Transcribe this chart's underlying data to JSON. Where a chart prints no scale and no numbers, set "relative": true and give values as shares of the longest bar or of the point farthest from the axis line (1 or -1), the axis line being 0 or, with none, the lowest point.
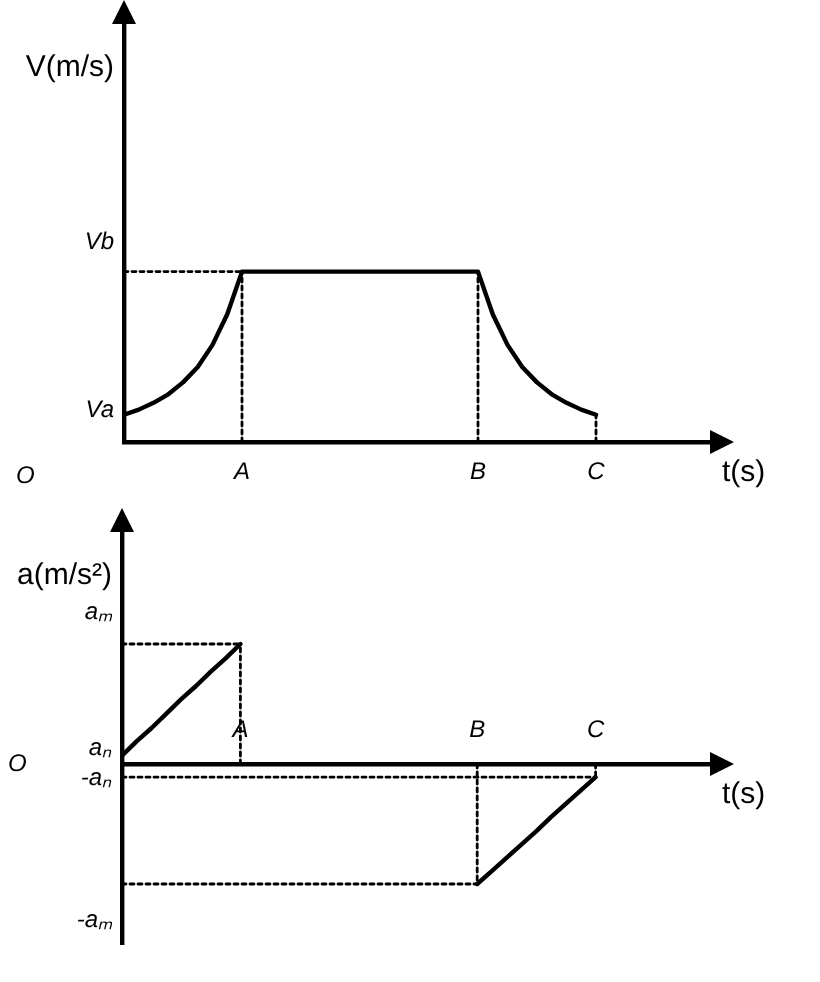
{
  "chart_data": [
    {
      "type": "line",
      "xlabel": "t(s)",
      "ylabel": "V(m/s)",
      "relative": true,
      "marker": "none",
      "grid": false,
      "categories": [
        null,
        null,
        null,
        null,
        null,
        null,
        null,
        null,
        "A",
        null,
        null,
        null,
        null,
        null,
        null,
        null,
        null,
        null,
        null,
        null,
        null,
        null,
        null,
        null,
        "B",
        null,
        null,
        null,
        null,
        null,
        null,
        null,
        "C",
        null,
        null,
        null,
        null,
        null,
        null,
        null,
        null
      ],
      "annotations": [
        "O",
        "Vb",
        "Va"
      ],
      "series": [
        {
          "color": "#000000",
          "line_style": "solid",
          "values": [
            0.16,
            0.19,
            0.23,
            0.28,
            0.35,
            0.44,
            0.57,
            0.75,
            1,
            1,
            1,
            1,
            1,
            1,
            1,
            1,
            1,
            1,
            1,
            1,
            1,
            1,
            1,
            1,
            1,
            0.75,
            0.57,
            0.44,
            0.35,
            0.28,
            0.23,
            0.19,
            0.16,
            null,
            null,
            null,
            null,
            null,
            null,
            null,
            null
          ]
        },
        {
          "color": "#000000",
          "line_style": "dotted",
          "values": [
            1,
            1,
            1,
            1,
            1,
            1,
            1,
            1,
            1,
            null,
            null,
            null,
            null,
            null,
            null,
            null,
            null,
            null,
            null,
            null,
            null,
            null,
            null,
            null,
            null,
            null,
            null,
            null,
            null,
            null,
            null,
            null,
            null,
            null,
            null,
            null,
            null,
            null,
            null,
            null,
            null
          ]
        },
        {
          "color": "#000000",
          "line_style": "dotted",
          "x": [
            "A",
            "A"
          ],
          "values": [
            0,
            1
          ]
        },
        {
          "color": "#000000",
          "line_style": "dotted",
          "x": [
            "B",
            "B"
          ],
          "values": [
            0,
            1
          ]
        },
        {
          "color": "#000000",
          "line_style": "dotted",
          "x": [
            "C",
            "C"
          ],
          "values": [
            0,
            0.16
          ]
        }
      ]
    },
    {
      "type": "line",
      "xlabel": "t(s)",
      "ylabel": "a(m/s²)",
      "relative": true,
      "marker": "none",
      "grid": false,
      "categories": [
        null,
        null,
        null,
        null,
        null,
        null,
        null,
        null,
        "A",
        null,
        null,
        null,
        null,
        null,
        null,
        null,
        null,
        null,
        null,
        null,
        null,
        null,
        null,
        null,
        "B",
        null,
        null,
        null,
        null,
        null,
        null,
        null,
        "C",
        null,
        null,
        null,
        null,
        null,
        null,
        null,
        null
      ],
      "annotations": [
        "O",
        "aₘ",
        "aₙ",
        "-aₙ",
        "-aₘ"
      ],
      "series": [
        {
          "color": "#000000",
          "line_style": "solid",
          "values": [
            0.07,
            0.19,
            0.3,
            0.42,
            0.54,
            0.65,
            0.77,
            0.88,
            1,
            null,
            null,
            null,
            null,
            null,
            null,
            null,
            null,
            null,
            null,
            null,
            null,
            null,
            null,
            null,
            null,
            null,
            null,
            null,
            null,
            null,
            null,
            null,
            null,
            null,
            null,
            null,
            null,
            null,
            null,
            null,
            null
          ]
        },
        {
          "color": "#000000",
          "line_style": "solid",
          "values": [
            null,
            null,
            null,
            null,
            null,
            null,
            null,
            null,
            null,
            null,
            null,
            null,
            null,
            null,
            null,
            null,
            null,
            null,
            null,
            null,
            null,
            null,
            null,
            null,
            -1,
            -0.89,
            -0.78,
            -0.67,
            -0.56,
            -0.44,
            -0.33,
            -0.22,
            -0.11,
            null,
            null,
            null,
            null,
            null,
            null,
            null,
            null
          ]
        },
        {
          "color": "#000000",
          "line_style": "dotted",
          "values": [
            1,
            1,
            1,
            1,
            1,
            1,
            1,
            1,
            1,
            null,
            null,
            null,
            null,
            null,
            null,
            null,
            null,
            null,
            null,
            null,
            null,
            null,
            null,
            null,
            null,
            null,
            null,
            null,
            null,
            null,
            null,
            null,
            null,
            null,
            null,
            null,
            null,
            null,
            null,
            null,
            null
          ]
        },
        {
          "color": "#000000",
          "line_style": "dotted",
          "x": [
            "A",
            "A"
          ],
          "values": [
            0,
            1
          ]
        },
        {
          "color": "#000000",
          "line_style": "dotted",
          "x": [
            "B",
            "B"
          ],
          "values": [
            0,
            -1
          ]
        },
        {
          "color": "#000000",
          "line_style": "dotted",
          "values": [
            -1,
            -1,
            -1,
            -1,
            -1,
            -1,
            -1,
            -1,
            -1,
            -1,
            -1,
            -1,
            -1,
            -1,
            -1,
            -1,
            -1,
            -1,
            -1,
            -1,
            -1,
            -1,
            -1,
            -1,
            -1,
            null,
            null,
            null,
            null,
            null,
            null,
            null,
            null,
            null,
            null,
            null,
            null,
            null,
            null,
            null,
            null
          ]
        },
        {
          "color": "#000000",
          "line_style": "dotted",
          "values": [
            -0.11,
            -0.11,
            -0.11,
            -0.11,
            -0.11,
            -0.11,
            -0.11,
            -0.11,
            -0.11,
            -0.11,
            -0.11,
            -0.11,
            -0.11,
            -0.11,
            -0.11,
            -0.11,
            -0.11,
            -0.11,
            -0.11,
            -0.11,
            -0.11,
            -0.11,
            -0.11,
            -0.11,
            -0.11,
            -0.11,
            -0.11,
            -0.11,
            -0.11,
            -0.11,
            -0.11,
            -0.11,
            -0.11,
            null,
            null,
            null,
            null,
            null,
            null,
            null,
            null
          ]
        },
        {
          "color": "#000000",
          "line_style": "dotted",
          "x": [
            "C",
            "C"
          ],
          "values": [
            0,
            -0.11
          ]
        }
      ]
    }
  ]
}
